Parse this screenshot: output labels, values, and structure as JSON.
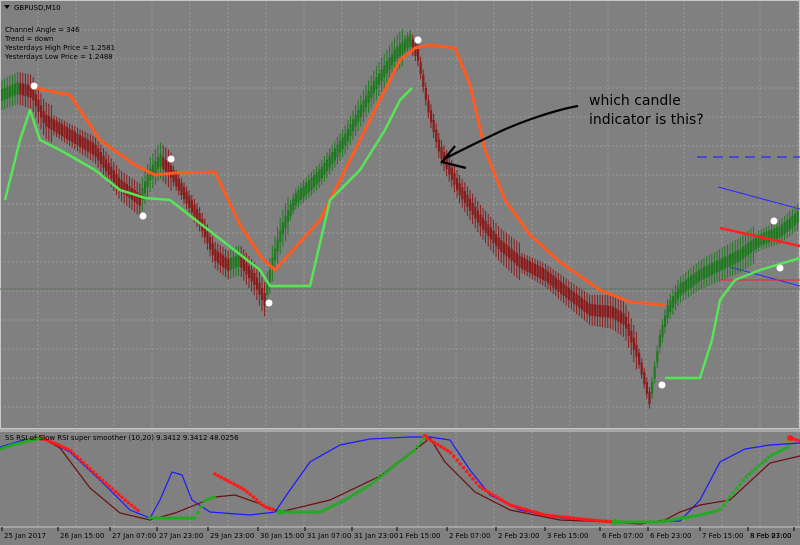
{
  "window": {
    "symbol_title": "GBPUSD,M10"
  },
  "info_panel": {
    "lines": [
      "Channel Angle = 346",
      "Trend = down",
      "Yesterdays High Price = 1.2581",
      "Yesterdays Low Price = 1.2488"
    ]
  },
  "annotation": {
    "line1": "which candle",
    "line2": "indicator is this?"
  },
  "subwindow": {
    "title": "SS RSI of Slow RSI super smoother (10,20) 9.3412 9.3412 48.0256"
  },
  "time_axis": {
    "labels": [
      "25 Jan 2017",
      "26 Jan 15:00",
      "27 Jan 07:00",
      "27 Jan 23:00",
      "29 Jan 23:00",
      "30 Jan 15:00",
      "31 Jan 07:00",
      "31 Jan 23:00",
      "1 Feb 15:00",
      "2 Feb 07:00",
      "2 Feb 23:00",
      "3 Feb 15:00",
      "6 Feb 07:00",
      "6 Feb 23:00",
      "7 Feb 15:00",
      "8 Feb 07:00",
      "8 Feb 23:00"
    ]
  },
  "colors": {
    "background": "#808080",
    "grid": "#9a9a9a",
    "bull_candle": "#1f7a1f",
    "bear_candle": "#8b1a1a",
    "upper_band": "#ff5a1f",
    "lower_band": "#55e655",
    "dot": "#ffffff",
    "arrow": "#000000",
    "osc_blue": "#1a1aff",
    "osc_dark": "#6b0f0f",
    "osc_red": "#ff1a1a",
    "osc_green": "#22aa22",
    "channel_blue": "#2a2aff",
    "channel_red": "#ff2020"
  }
}
